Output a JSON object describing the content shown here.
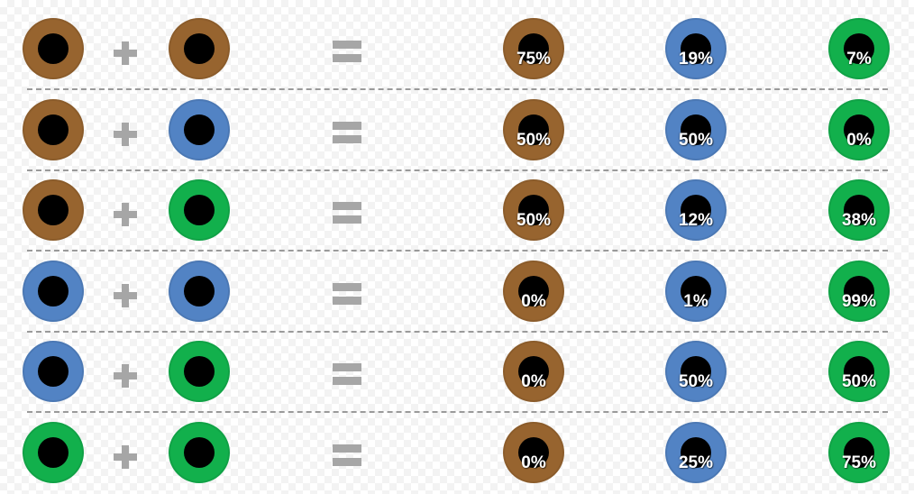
{
  "colors": {
    "brown": "#97642f",
    "blue": "#5283c4",
    "green": "#12b04c",
    "pupil": "#000000",
    "operator": "#a6a6a6",
    "divider": "#9a9a9a"
  },
  "rows": [
    {
      "parent1": "brown",
      "parent2": "brown",
      "results": [
        {
          "color": "brown",
          "percent": "75%"
        },
        {
          "color": "blue",
          "percent": "19%"
        },
        {
          "color": "green",
          "percent": "7%"
        }
      ]
    },
    {
      "parent1": "brown",
      "parent2": "blue",
      "results": [
        {
          "color": "brown",
          "percent": "50%"
        },
        {
          "color": "blue",
          "percent": "50%"
        },
        {
          "color": "green",
          "percent": "0%"
        }
      ]
    },
    {
      "parent1": "brown",
      "parent2": "green",
      "results": [
        {
          "color": "brown",
          "percent": "50%"
        },
        {
          "color": "blue",
          "percent": "12%"
        },
        {
          "color": "green",
          "percent": "38%"
        }
      ]
    },
    {
      "parent1": "blue",
      "parent2": "blue",
      "results": [
        {
          "color": "brown",
          "percent": "0%"
        },
        {
          "color": "blue",
          "percent": "1%"
        },
        {
          "color": "green",
          "percent": "99%"
        }
      ]
    },
    {
      "parent1": "blue",
      "parent2": "green",
      "results": [
        {
          "color": "brown",
          "percent": "0%"
        },
        {
          "color": "blue",
          "percent": "50%"
        },
        {
          "color": "green",
          "percent": "50%"
        }
      ]
    },
    {
      "parent1": "green",
      "parent2": "green",
      "results": [
        {
          "color": "brown",
          "percent": "0%"
        },
        {
          "color": "blue",
          "percent": "25%"
        },
        {
          "color": "green",
          "percent": "75%"
        }
      ]
    }
  ]
}
